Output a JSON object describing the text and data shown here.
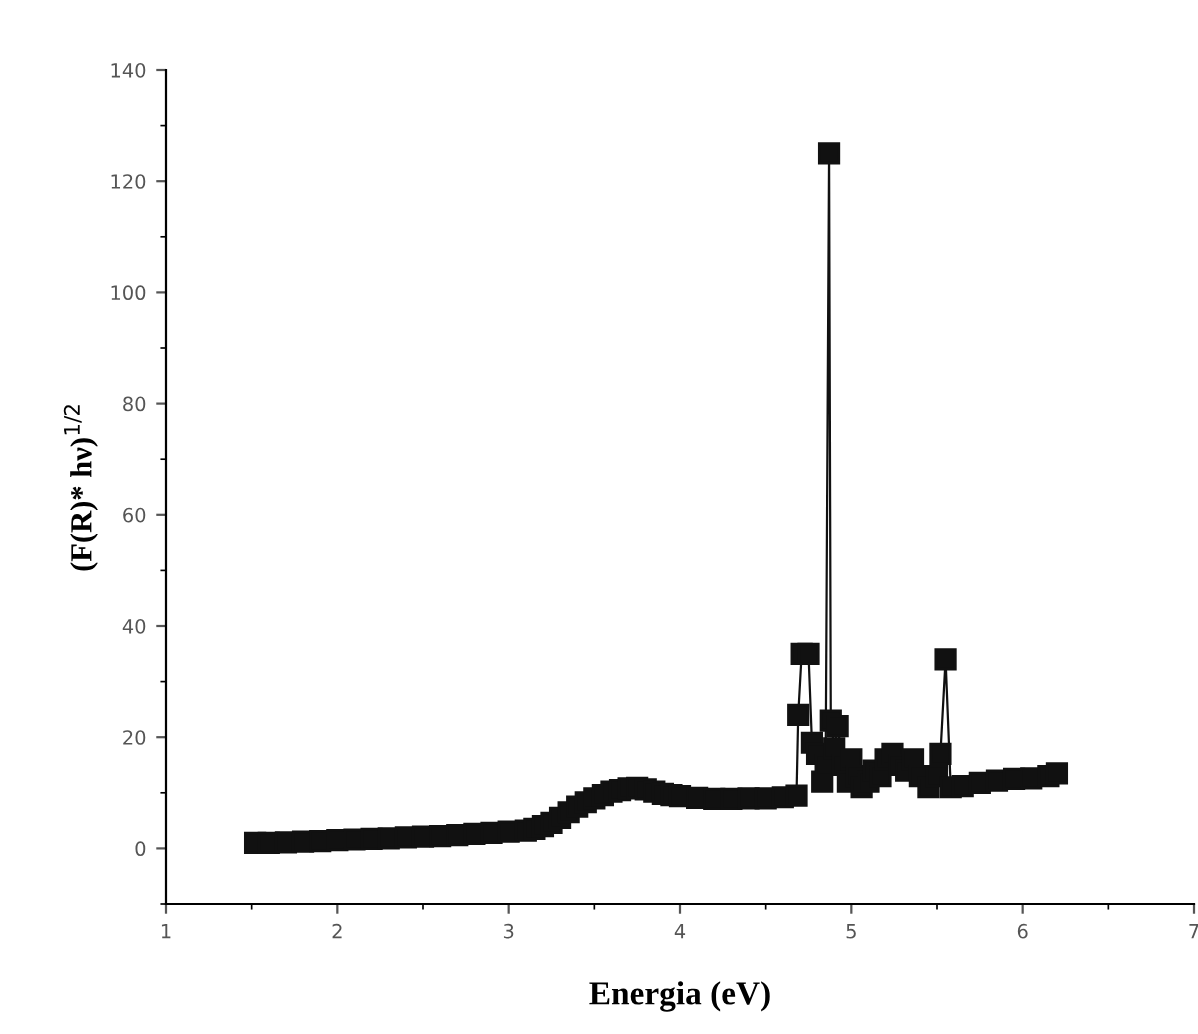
{
  "chart_data": {
    "type": "line",
    "xlabel": "Energia (eV)",
    "ylabel": "(F(R)* hν)$^{1/2}$",
    "marker": "square",
    "line_style": "solid",
    "grid": false,
    "legend": false,
    "xlim": [
      1,
      7
    ],
    "xticks": [
      1,
      2,
      3,
      4,
      5,
      6,
      7
    ],
    "ylim": [
      -10,
      140
    ],
    "yticks": [
      0,
      20,
      40,
      60,
      80,
      100,
      120,
      140
    ],
    "series": [
      {
        "color": "#111111",
        "x": [
          1.52,
          1.6,
          1.7,
          1.8,
          1.9,
          2.0,
          2.1,
          2.2,
          2.3,
          2.4,
          2.5,
          2.6,
          2.7,
          2.8,
          2.9,
          3.0,
          3.1,
          3.15,
          3.2,
          3.25,
          3.3,
          3.35,
          3.4,
          3.45,
          3.5,
          3.55,
          3.6,
          3.65,
          3.7,
          3.75,
          3.8,
          3.85,
          3.9,
          3.95,
          4.0,
          4.1,
          4.2,
          4.3,
          4.4,
          4.5,
          4.6,
          4.68,
          4.69,
          4.71,
          4.75,
          4.77,
          4.8,
          4.83,
          4.85,
          4.87,
          4.88,
          4.9,
          4.92,
          4.95,
          4.98,
          5.0,
          5.03,
          5.06,
          5.1,
          5.13,
          5.17,
          5.2,
          5.24,
          5.28,
          5.32,
          5.36,
          5.4,
          5.45,
          5.5,
          5.52,
          5.55,
          5.58,
          5.65,
          5.75,
          5.85,
          5.95,
          6.05,
          6.15,
          6.2
        ],
        "values": [
          1.0,
          1.0,
          1.1,
          1.2,
          1.3,
          1.5,
          1.6,
          1.7,
          1.8,
          2.0,
          2.1,
          2.2,
          2.4,
          2.6,
          2.8,
          3.0,
          3.2,
          3.5,
          4.0,
          4.6,
          5.5,
          6.5,
          7.5,
          8.3,
          9.0,
          9.6,
          10.2,
          10.5,
          10.8,
          10.9,
          10.6,
          10.2,
          9.8,
          9.6,
          9.4,
          9.1,
          8.9,
          8.9,
          9.0,
          9.0,
          9.2,
          9.5,
          24,
          35,
          35,
          19,
          17,
          12,
          15,
          125,
          23,
          18,
          22,
          15,
          12,
          16,
          13,
          11,
          12,
          14,
          13,
          16,
          17,
          15,
          14,
          16,
          13,
          11,
          13,
          17,
          34,
          11,
          11.2,
          11.8,
          12.2,
          12.5,
          12.6,
          13,
          13.5
        ]
      }
    ]
  }
}
